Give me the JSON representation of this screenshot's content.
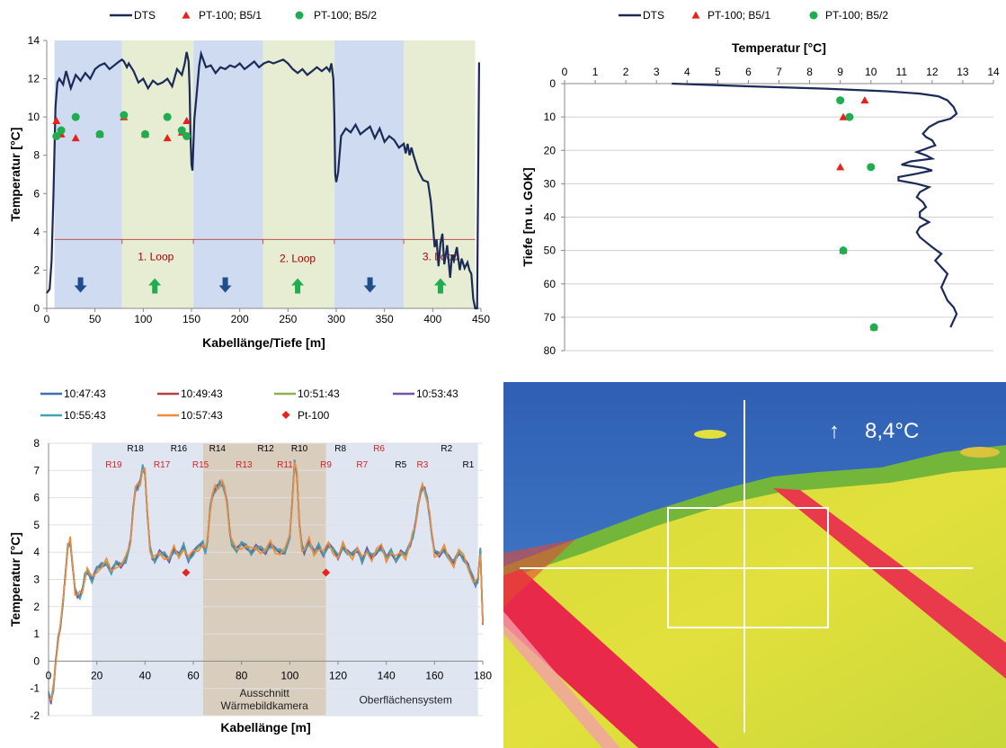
{
  "chart_data": [
    {
      "type": "line",
      "xlabel": "Kabellänge/Tiefe [m]",
      "ylabel": "Temperatur [°C]",
      "xlim": [
        0,
        450
      ],
      "ylim": [
        0,
        14
      ],
      "xticks": [
        0,
        50,
        100,
        150,
        200,
        250,
        300,
        350,
        400,
        450
      ],
      "yticks": [
        0,
        2,
        4,
        6,
        8,
        10,
        12,
        14
      ],
      "grid": false,
      "legend_position": "top",
      "legend": [
        "DTS",
        "PT-100; B5/1",
        "PT-100; B5/2"
      ],
      "colors": {
        "dts": "#1b2a57",
        "pt1": "#e8211a",
        "pt2": "#1fae4f",
        "band_down": "#c9d7ee",
        "band_up": "#e4ebcd",
        "loop": "#c0504d",
        "arrow_down": "#1e4e8c",
        "arrow_up": "#1fae4f"
      },
      "bands": [
        {
          "from": 8,
          "to": 78,
          "kind": "down"
        },
        {
          "from": 78,
          "to": 152,
          "kind": "up"
        },
        {
          "from": 152,
          "to": 224,
          "kind": "down"
        },
        {
          "from": 224,
          "to": 298,
          "kind": "up"
        },
        {
          "from": 298,
          "to": 370,
          "kind": "down"
        },
        {
          "from": 370,
          "to": 444,
          "kind": "up"
        }
      ],
      "loop_line_y": 3.6,
      "loop_labels": [
        {
          "text": "1. Loop",
          "x": 113,
          "y": 2.7
        },
        {
          "text": "2. Loop",
          "x": 260,
          "y": 2.6
        },
        {
          "text": "3. Loop",
          "x": 408,
          "y": 2.7
        }
      ],
      "arrows": [
        {
          "x": 35,
          "dir": "down"
        },
        {
          "x": 112,
          "dir": "up"
        },
        {
          "x": 185,
          "dir": "down"
        },
        {
          "x": 260,
          "dir": "up"
        },
        {
          "x": 335,
          "dir": "down"
        },
        {
          "x": 408,
          "dir": "up"
        }
      ],
      "series": [
        {
          "name": "DTS",
          "style": "line",
          "x": [
            0,
            3,
            5,
            7,
            9,
            11,
            13,
            17,
            20,
            25,
            30,
            35,
            40,
            45,
            50,
            55,
            60,
            65,
            70,
            75,
            78,
            80,
            83,
            85,
            90,
            95,
            100,
            105,
            110,
            115,
            120,
            125,
            130,
            135,
            140,
            143,
            145,
            147,
            148,
            149,
            150,
            151,
            152,
            153,
            155,
            158,
            160,
            165,
            170,
            175,
            180,
            185,
            190,
            195,
            200,
            205,
            210,
            215,
            220,
            225,
            230,
            235,
            240,
            245,
            250,
            255,
            260,
            265,
            270,
            275,
            280,
            285,
            290,
            293,
            295,
            297,
            298,
            299,
            300,
            302,
            305,
            310,
            315,
            320,
            325,
            330,
            335,
            340,
            345,
            350,
            355,
            360,
            365,
            370,
            372,
            374,
            376,
            378,
            380,
            385,
            390,
            395,
            398,
            400,
            402,
            404,
            406,
            408,
            410,
            412,
            415,
            418,
            420,
            422,
            425,
            428,
            430,
            433,
            436,
            438,
            440,
            442,
            444,
            446,
            448,
            449
          ],
          "y": [
            0.8,
            1.0,
            2.5,
            6.0,
            10.5,
            11.8,
            12.0,
            11.7,
            12.4,
            11.5,
            12.2,
            11.9,
            12.3,
            12.0,
            12.5,
            12.7,
            12.8,
            12.5,
            12.7,
            12.9,
            13.0,
            12.9,
            12.6,
            12.8,
            12.4,
            11.8,
            12.0,
            11.5,
            11.9,
            11.7,
            11.8,
            12.0,
            11.6,
            12.5,
            12.2,
            12.8,
            13.4,
            12.9,
            11.5,
            9.0,
            7.5,
            7.2,
            8.5,
            9.9,
            11.0,
            12.7,
            13.3,
            12.6,
            12.7,
            12.3,
            12.6,
            12.5,
            12.7,
            12.6,
            12.8,
            12.5,
            12.7,
            12.9,
            12.6,
            12.8,
            12.9,
            12.8,
            12.9,
            13.0,
            12.8,
            12.5,
            12.3,
            12.5,
            12.2,
            12.4,
            12.6,
            12.4,
            12.6,
            12.4,
            12.8,
            12.0,
            10.0,
            7.0,
            6.6,
            7.1,
            9.0,
            9.4,
            9.2,
            9.6,
            9.1,
            9.3,
            9.5,
            8.9,
            9.4,
            8.7,
            9.0,
            8.8,
            8.4,
            8.6,
            8.1,
            8.6,
            8.0,
            8.4,
            8.0,
            7.2,
            6.7,
            6.6,
            5.6,
            4.5,
            3.2,
            3.6,
            2.2,
            3.4,
            3.9,
            2.3,
            3.3,
            1.6,
            2.8,
            2.5,
            3.2,
            2.0,
            2.6,
            2.1,
            2.4,
            2.0,
            1.8,
            0.5,
            0.0,
            0.0,
            12.8,
            12.8
          ]
        },
        {
          "name": "PT-100; B5/1",
          "style": "marker",
          "x": [
            10,
            15,
            30,
            55,
            80,
            102,
            125,
            140,
            145
          ],
          "y": [
            9.8,
            9.1,
            8.9,
            9.1,
            10.0,
            9.1,
            8.9,
            9.2,
            9.8
          ]
        },
        {
          "name": "PT-100; B5/2",
          "style": "marker",
          "x": [
            10,
            15,
            30,
            55,
            80,
            102,
            125,
            140,
            145
          ],
          "y": [
            9.0,
            9.3,
            10.0,
            9.1,
            10.1,
            9.1,
            10.0,
            9.3,
            9.0
          ]
        }
      ]
    },
    {
      "type": "line",
      "title": "Temperatur [°C]",
      "ylabel": "Tiefe [m u. GOK]",
      "xlim": [
        0,
        14
      ],
      "ylim": [
        80,
        0
      ],
      "xticks": [
        0,
        1,
        2,
        3,
        4,
        5,
        6,
        7,
        8,
        9,
        10,
        11,
        12,
        13,
        14
      ],
      "yticks": [
        0,
        10,
        20,
        30,
        40,
        50,
        60,
        70,
        80
      ],
      "grid": true,
      "legend_position": "top",
      "legend": [
        "DTS",
        "PT-100; B5/1",
        "PT-100; B5/2"
      ],
      "colors": {
        "dts": "#1b2a57",
        "pt1": "#e8211a",
        "pt2": "#1fae4f",
        "grid": "#d0d0d0"
      },
      "series": [
        {
          "name": "DTS",
          "style": "line",
          "x": [
            3.5,
            6.0,
            8.5,
            10.5,
            11.6,
            12.2,
            12.5,
            12.7,
            12.8,
            12.6,
            12.2,
            11.9,
            11.7,
            11.8,
            12.0,
            12.1,
            11.8,
            11.5,
            11.8,
            12.0,
            11.3,
            11.0,
            11.7,
            12.0,
            11.5,
            10.9,
            10.9,
            11.5,
            11.9,
            11.6,
            11.5,
            11.7,
            11.8,
            11.6,
            11.6,
            11.9,
            11.6,
            11.5,
            11.6,
            11.8,
            12.0,
            12.3,
            12.1,
            12.3,
            12.5,
            12.4,
            12.3,
            12.4,
            12.5,
            12.7,
            12.8,
            12.7,
            12.6
          ],
          "y": [
            0,
            0.8,
            1.5,
            2.3,
            3.0,
            3.8,
            5.0,
            7.0,
            9.0,
            10.5,
            11.5,
            13.0,
            15.0,
            16.0,
            17.0,
            18.5,
            19.5,
            20.5,
            21.5,
            22.5,
            23.3,
            24.3,
            25.2,
            26.0,
            27.0,
            28.0,
            29.0,
            30.0,
            31.0,
            32.5,
            34.0,
            35.5,
            37.0,
            38.5,
            40.0,
            41.5,
            43.0,
            44.5,
            46.0,
            47.5,
            49.0,
            51.0,
            53.0,
            55.0,
            57.0,
            59.0,
            61.0,
            63.0,
            65.0,
            67.0,
            69.0,
            71.0,
            73.0
          ]
        },
        {
          "name": "PT-100; B5/1",
          "style": "marker",
          "x": [
            9.8,
            9.1,
            9.0,
            9.1,
            10.1
          ],
          "y": [
            5,
            10,
            25,
            50,
            73
          ]
        },
        {
          "name": "PT-100; B5/2",
          "style": "marker",
          "x": [
            9.0,
            9.3,
            10.0,
            9.1,
            10.1
          ],
          "y": [
            5,
            10,
            25,
            50,
            73
          ]
        }
      ]
    },
    {
      "type": "line",
      "xlabel": "Kabellänge [m]",
      "ylabel": "Temperatur [°C]",
      "xlim": [
        0,
        180
      ],
      "ylim": [
        -2,
        8
      ],
      "xticks": [
        0,
        20,
        40,
        60,
        80,
        100,
        120,
        140,
        160,
        180
      ],
      "yticks": [
        -2,
        -1,
        0,
        1,
        2,
        3,
        4,
        5,
        6,
        7,
        8
      ],
      "grid": true,
      "legend_position": "top",
      "legend": [
        "10:47:43",
        "10:49:43",
        "10:51:43",
        "10:53:43",
        "10:55:43",
        "10:57:43",
        "Pt-100"
      ],
      "colors": {
        "band_a": "#dfe6f2",
        "band_b": "#d9cdbe",
        "grid": "#e0e0e0"
      },
      "bands": [
        {
          "from": 18,
          "to": 64,
          "color": "#dfe6f2"
        },
        {
          "from": 64,
          "to": 115,
          "color": "#d9cdbe"
        },
        {
          "from": 115,
          "to": 178,
          "color": "#dfe6f2"
        }
      ],
      "region_labels": [
        {
          "lines": [
            "Ausschnitt",
            "Wärmebildkamera"
          ],
          "x": 89.5,
          "y": -1.3
        },
        {
          "lines": [
            "Oberflächensystem"
          ],
          "x": 148,
          "y": -1.55
        }
      ],
      "r_labels": [
        {
          "text": "R19",
          "x": 27,
          "y": 7.2,
          "red": true
        },
        {
          "text": "R18",
          "x": 36,
          "y": 7.8,
          "red": false
        },
        {
          "text": "R17",
          "x": 47,
          "y": 7.2,
          "red": true
        },
        {
          "text": "R16",
          "x": 54,
          "y": 7.8,
          "red": false
        },
        {
          "text": "R15",
          "x": 63,
          "y": 7.2,
          "red": true
        },
        {
          "text": "R14",
          "x": 70,
          "y": 7.8,
          "red": false
        },
        {
          "text": "R13",
          "x": 81,
          "y": 7.2,
          "red": true
        },
        {
          "text": "R12",
          "x": 90,
          "y": 7.8,
          "red": false
        },
        {
          "text": "R11",
          "x": 98,
          "y": 7.2,
          "red": true
        },
        {
          "text": "R10",
          "x": 104,
          "y": 7.8,
          "red": false
        },
        {
          "text": "R9",
          "x": 115,
          "y": 7.2,
          "red": true
        },
        {
          "text": "R8",
          "x": 121,
          "y": 7.8,
          "red": false
        },
        {
          "text": "R7",
          "x": 130,
          "y": 7.2,
          "red": true
        },
        {
          "text": "R6",
          "x": 137,
          "y": 7.8,
          "red": true
        },
        {
          "text": "R5",
          "x": 146,
          "y": 7.2,
          "red": false
        },
        {
          "text": "R3",
          "x": 155,
          "y": 7.2,
          "red": true
        },
        {
          "text": "R2",
          "x": 165,
          "y": 7.8,
          "red": false
        },
        {
          "text": "R1",
          "x": 174,
          "y": 7.2,
          "red": false
        }
      ],
      "base": {
        "x": [
          0,
          1,
          2,
          3,
          4,
          5,
          6,
          7,
          8,
          9,
          10,
          11,
          12,
          13,
          14,
          15,
          16,
          18,
          20,
          22,
          24,
          26,
          28,
          30,
          32,
          34,
          35,
          36,
          37,
          38,
          39,
          40,
          41,
          42,
          43,
          44,
          46,
          48,
          50,
          52,
          54,
          56,
          58,
          60,
          62,
          64,
          65,
          66,
          67,
          68,
          69,
          70,
          71,
          72,
          73,
          74,
          75,
          76,
          78,
          80,
          82,
          84,
          86,
          88,
          90,
          92,
          94,
          96,
          98,
          100,
          101,
          102,
          103,
          104,
          105,
          106,
          108,
          110,
          112,
          114,
          116,
          118,
          120,
          122,
          124,
          126,
          128,
          130,
          132,
          134,
          136,
          138,
          140,
          142,
          144,
          146,
          148,
          150,
          151,
          152,
          153,
          154,
          155,
          156,
          157,
          158,
          159,
          160,
          162,
          164,
          166,
          168,
          170,
          172,
          174,
          176,
          177,
          178,
          179,
          180
        ],
        "y": [
          -1.2,
          -1.5,
          -1.0,
          0.0,
          0.8,
          1.3,
          2.2,
          3.2,
          4.2,
          4.4,
          3.5,
          2.6,
          2.4,
          2.4,
          2.6,
          3.1,
          3.3,
          3.0,
          3.4,
          3.5,
          3.6,
          3.3,
          3.6,
          3.5,
          3.7,
          4.4,
          5.5,
          6.3,
          6.4,
          6.6,
          7.1,
          6.9,
          5.4,
          4.2,
          3.8,
          3.7,
          4.0,
          3.9,
          3.7,
          4.1,
          3.9,
          4.2,
          3.7,
          4.0,
          4.2,
          4.3,
          4.0,
          4.5,
          5.6,
          6.1,
          6.3,
          6.4,
          6.5,
          6.5,
          6.3,
          5.8,
          4.8,
          4.3,
          4.1,
          4.3,
          4.2,
          4.0,
          4.2,
          4.1,
          4.0,
          4.3,
          4.1,
          4.0,
          4.0,
          4.6,
          5.8,
          7.3,
          6.8,
          5.0,
          4.2,
          4.0,
          4.4,
          4.0,
          4.2,
          3.9,
          4.3,
          4.1,
          3.8,
          4.2,
          4.0,
          3.9,
          4.1,
          3.7,
          4.1,
          3.8,
          4.0,
          4.2,
          3.8,
          4.0,
          3.7,
          4.0,
          3.9,
          4.3,
          4.6,
          5.0,
          5.6,
          6.1,
          6.4,
          6.3,
          5.9,
          5.3,
          4.6,
          4.0,
          3.9,
          4.1,
          3.8,
          3.6,
          4.0,
          3.8,
          3.5,
          3.0,
          2.8,
          3.0,
          4.1,
          1.4
        ]
      },
      "series": [
        {
          "name": "10:47:43",
          "color": "#3e6fb5",
          "offset": 0.05
        },
        {
          "name": "10:49:43",
          "color": "#b8403b",
          "offset": 0.12
        },
        {
          "name": "10:51:43",
          "color": "#8fb24a",
          "offset": -0.05
        },
        {
          "name": "10:53:43",
          "color": "#73579e",
          "offset": 0.08
        },
        {
          "name": "10:55:43",
          "color": "#3ea2b8",
          "offset": -0.12
        },
        {
          "name": "10:57:43",
          "color": "#ef8b3a",
          "offset": 0.18
        }
      ],
      "markers": {
        "name": "Pt-100",
        "color": "#e8211a",
        "x": [
          57,
          115
        ],
        "y": [
          3.25,
          3.25
        ]
      }
    }
  ],
  "thermal_image": {
    "temperature_label": "8,4°C",
    "arrow_glyph": "↑",
    "colors": {
      "blue": "#2f5fb4",
      "green": "#73b63a",
      "yellow": "#e2e03c",
      "red": "#e8294a",
      "white": "#ffffff"
    }
  }
}
